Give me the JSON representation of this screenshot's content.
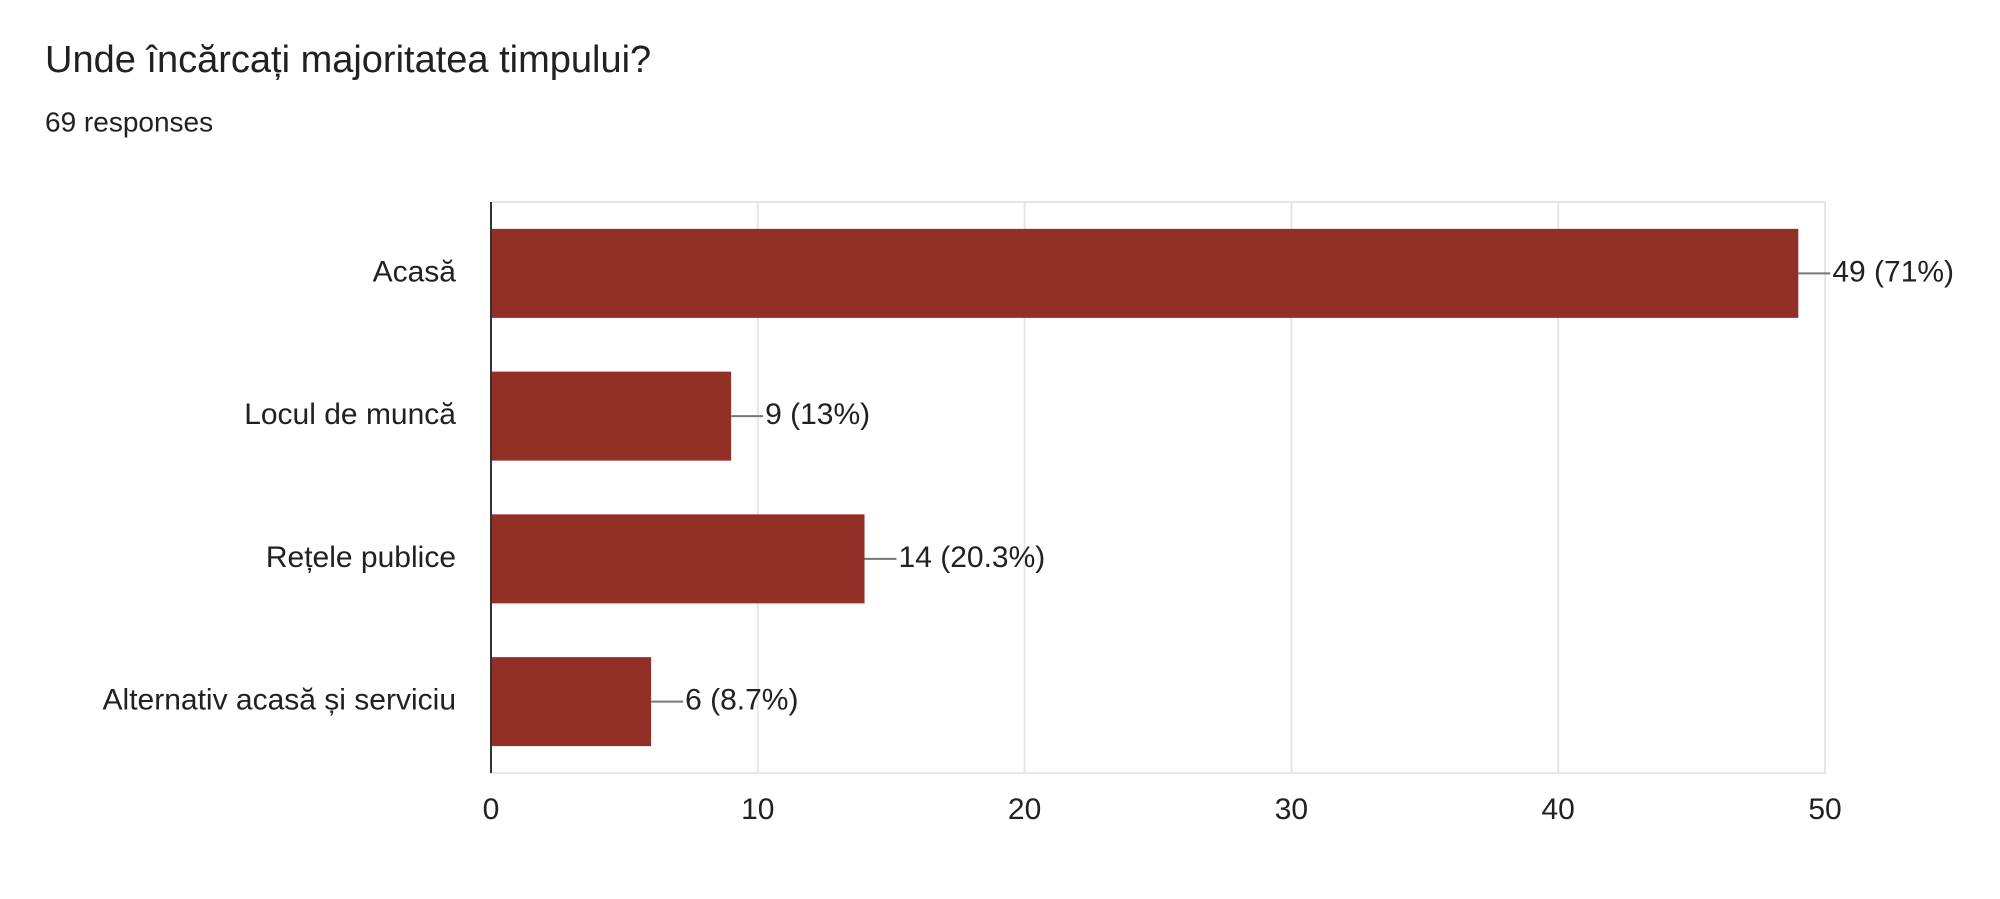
{
  "chart_data": {
    "type": "bar",
    "orientation": "horizontal",
    "title": "Unde încărcați majoritatea timpului?",
    "subtitle": "69 responses",
    "categories": [
      "Acasă",
      "Locul de muncă",
      "Rețele publice",
      "Alternativ acasă și serviciu"
    ],
    "values": [
      49,
      9,
      14,
      6
    ],
    "value_labels": [
      "49 (71%)",
      "9 (13%)",
      "14 (20.3%)",
      "6 (8.7%)"
    ],
    "color": "#922f27",
    "xlim": [
      0,
      50
    ],
    "xticks": [
      0,
      10,
      20,
      30,
      40,
      50
    ],
    "grid": true
  }
}
